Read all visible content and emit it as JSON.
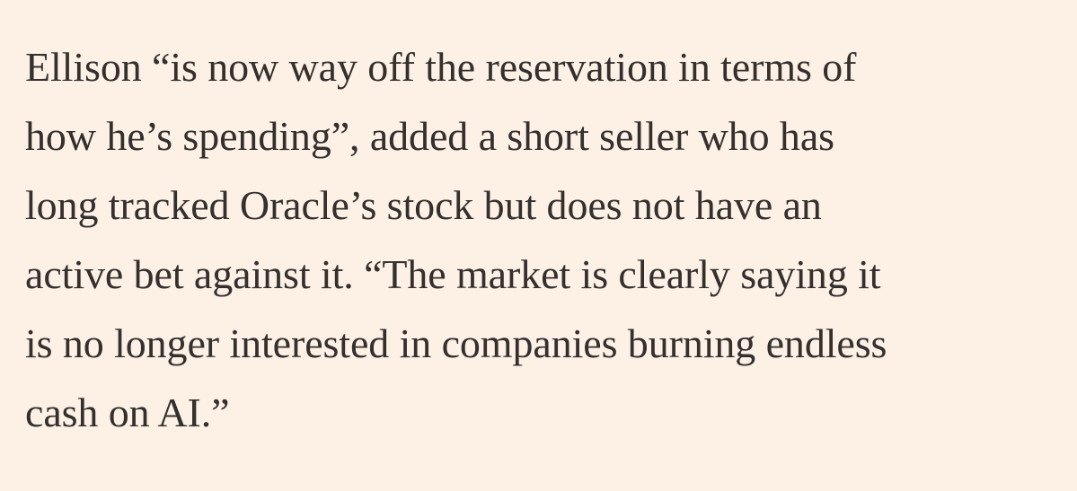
{
  "article": {
    "lines": [
      "Ellison “is now way off the reservation in terms of",
      "how he’s spending”, added a short seller who has",
      "long tracked Oracle’s stock but does not have an",
      "active bet against it. “The market is clearly saying it",
      "is no longer interested in companies burning endless",
      "cash on AI.”"
    ]
  },
  "colors": {
    "background": "#fdf1e6",
    "text": "#33302e"
  }
}
